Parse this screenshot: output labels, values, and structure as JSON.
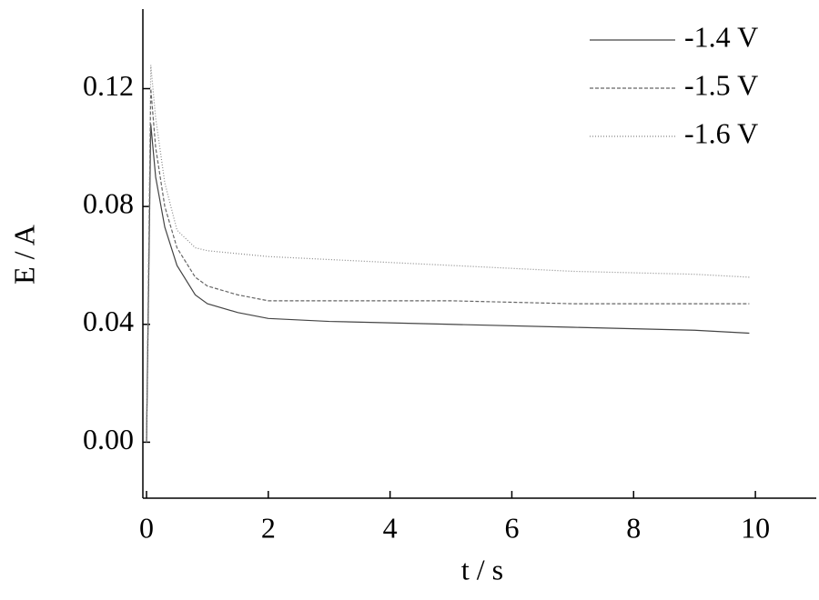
{
  "chart_data": {
    "type": "line",
    "x_label": "t / s",
    "y_label": "E / A",
    "x": [
      0,
      0.07,
      0.15,
      0.3,
      0.5,
      0.8,
      1.0,
      1.5,
      2,
      3,
      5,
      7,
      9,
      9.9
    ],
    "series": [
      {
        "name": "-1.4 V",
        "color": "#444444",
        "style": "solid",
        "values": [
          0.0,
          0.108,
          0.09,
          0.073,
          0.06,
          0.05,
          0.047,
          0.044,
          0.042,
          0.041,
          0.04,
          0.039,
          0.038,
          0.037
        ]
      },
      {
        "name": "-1.5 V",
        "color": "#666666",
        "style": "dashed",
        "values": [
          0.0,
          0.12,
          0.1,
          0.08,
          0.066,
          0.056,
          0.053,
          0.05,
          0.048,
          0.048,
          0.048,
          0.047,
          0.047,
          0.047
        ]
      },
      {
        "name": "-1.6 V",
        "color": "#888888",
        "style": "dotted",
        "values": [
          0.0,
          0.128,
          0.11,
          0.088,
          0.072,
          0.066,
          0.065,
          0.064,
          0.063,
          0.062,
          0.06,
          0.058,
          0.057,
          0.056
        ]
      }
    ],
    "xlim": [
      -0.06,
      11
    ],
    "ylim": [
      -0.019,
      0.147
    ],
    "xticks": [
      0,
      2,
      4,
      6,
      8,
      10
    ],
    "yticks": [
      {
        "value": 0,
        "label": "0.00"
      },
      {
        "value": 0.04,
        "label": "0.04"
      },
      {
        "value": 0.08,
        "label": "0.08"
      },
      {
        "value": 0.12,
        "label": "0.12"
      }
    ],
    "legend": "top-right"
  }
}
